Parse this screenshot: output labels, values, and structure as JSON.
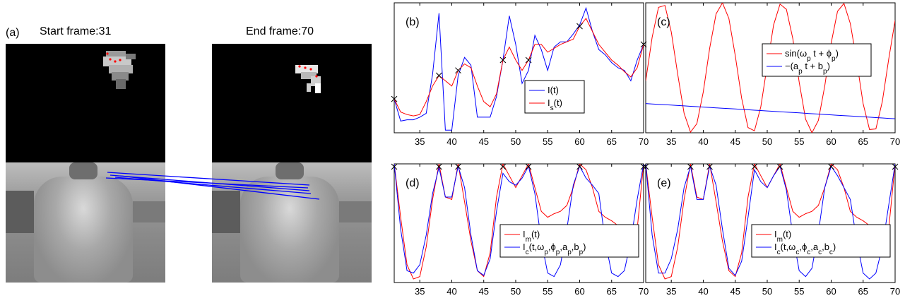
{
  "panel_a": {
    "label": "(a)",
    "start_title": "Start frame:31",
    "end_title": "End frame:70"
  },
  "chart_data": [
    {
      "panel": "(b)",
      "type": "line",
      "x": [
        31,
        32,
        33,
        34,
        35,
        36,
        37,
        38,
        39,
        40,
        41,
        42,
        43,
        44,
        45,
        46,
        47,
        48,
        49,
        50,
        51,
        52,
        53,
        54,
        55,
        56,
        57,
        58,
        59,
        60,
        61,
        62,
        63,
        64,
        65,
        66,
        67,
        68,
        69,
        70
      ],
      "xlim": [
        31,
        70
      ],
      "xticks": [
        35,
        40,
        45,
        50,
        55,
        60,
        65,
        70
      ],
      "ylim": [
        0,
        1
      ],
      "series": [
        {
          "name": "I(t)",
          "color": "#0000ff",
          "values": [
            0.26,
            0.09,
            0.1,
            0.1,
            0.12,
            0.15,
            0.45,
            0.92,
            0.02,
            0.02,
            0.44,
            0.58,
            0.52,
            0.12,
            0.12,
            0.12,
            0.28,
            0.56,
            0.9,
            0.68,
            0.38,
            0.48,
            0.75,
            0.64,
            0.48,
            0.66,
            0.7,
            0.7,
            0.76,
            0.83,
            0.96,
            0.78,
            0.64,
            0.6,
            0.54,
            0.5,
            0.48,
            0.4,
            0.56,
            0.68
          ]
        },
        {
          "name": "I_s(t)",
          "color": "#ff0000",
          "values": [
            0.26,
            0.16,
            0.14,
            0.13,
            0.14,
            0.24,
            0.36,
            0.44,
            0.4,
            0.36,
            0.48,
            0.53,
            0.5,
            0.36,
            0.24,
            0.2,
            0.3,
            0.56,
            0.66,
            0.56,
            0.48,
            0.56,
            0.68,
            0.68,
            0.62,
            0.65,
            0.68,
            0.7,
            0.72,
            0.82,
            0.88,
            0.78,
            0.68,
            0.62,
            0.56,
            0.52,
            0.47,
            0.43,
            0.5,
            0.68
          ]
        }
      ],
      "markers_x": [
        31,
        38,
        41,
        48,
        52,
        60,
        70
      ],
      "legend": "center-right"
    },
    {
      "panel": "(c)",
      "type": "line",
      "x": [
        31,
        32,
        33,
        34,
        35,
        36,
        37,
        38,
        39,
        40,
        41,
        42,
        43,
        44,
        45,
        46,
        47,
        48,
        49,
        50,
        51,
        52,
        53,
        54,
        55,
        56,
        57,
        58,
        59,
        60,
        61,
        62,
        63,
        64,
        65,
        66,
        67,
        68,
        69,
        70
      ],
      "xlim": [
        31,
        70
      ],
      "xticks": [
        35,
        40,
        45,
        50,
        55,
        60,
        65,
        70
      ],
      "ylim": [
        -1,
        1
      ],
      "series": [
        {
          "name": "sin(ω_p t + ϕ_p)",
          "color": "#ff0000",
          "values": [
            -0.2,
            0.47,
            0.93,
            0.96,
            0.55,
            -0.1,
            -0.7,
            -0.99,
            -0.86,
            -0.37,
            0.3,
            0.83,
            1.0,
            0.76,
            0.19,
            -0.47,
            -0.92,
            -0.97,
            -0.6,
            0.04,
            0.66,
            0.98,
            0.9,
            0.45,
            -0.22,
            -0.79,
            -1.0,
            -0.81,
            -0.28,
            0.38,
            0.87,
            0.99,
            0.68,
            0.1,
            -0.55,
            -0.95,
            -0.94,
            -0.52,
            0.13,
            0.73
          ]
        },
        {
          "name": "−(a_p t + b_p)",
          "color": "#0000ff",
          "values": [
            -0.55,
            -0.556,
            -0.562,
            -0.568,
            -0.574,
            -0.58,
            -0.586,
            -0.592,
            -0.598,
            -0.604,
            -0.61,
            -0.616,
            -0.622,
            -0.628,
            -0.634,
            -0.64,
            -0.646,
            -0.652,
            -0.658,
            -0.664,
            -0.67,
            -0.676,
            -0.682,
            -0.688,
            -0.694,
            -0.7,
            -0.706,
            -0.712,
            -0.718,
            -0.724,
            -0.73,
            -0.736,
            -0.742,
            -0.748,
            -0.754,
            -0.76,
            -0.766,
            -0.772,
            -0.778,
            -0.784
          ]
        }
      ],
      "legend": "upper-right"
    },
    {
      "panel": "(d)",
      "type": "line",
      "x": [
        31,
        32,
        33,
        34,
        35,
        36,
        37,
        38,
        39,
        40,
        41,
        42,
        43,
        44,
        45,
        46,
        47,
        48,
        49,
        50,
        51,
        52,
        53,
        54,
        55,
        56,
        57,
        58,
        59,
        60,
        61,
        62,
        63,
        64,
        65,
        66,
        67,
        68,
        69,
        70
      ],
      "xlim": [
        31,
        70
      ],
      "xticks": [
        35,
        40,
        45,
        50,
        55,
        60,
        65,
        70
      ],
      "ylim": [
        0,
        1
      ],
      "series": [
        {
          "name": "I_m(t)",
          "color": "#ff0000",
          "values": [
            1.0,
            0.55,
            0.15,
            0.03,
            0.05,
            0.3,
            0.7,
            1.0,
            0.72,
            0.7,
            1.0,
            0.68,
            0.35,
            0.1,
            0.05,
            0.25,
            0.72,
            1.0,
            0.9,
            0.8,
            0.9,
            1.0,
            0.8,
            0.6,
            0.55,
            0.58,
            0.6,
            0.65,
            0.8,
            1.0,
            0.95,
            0.8,
            0.6,
            0.55,
            0.52,
            0.48,
            0.44,
            0.4,
            0.45,
            1.0
          ]
        },
        {
          "name": "I_c(t,ω_p,ϕ_p,a_p,b_p)",
          "color": "#0000ff",
          "values": [
            1.0,
            0.45,
            0.1,
            0.08,
            0.15,
            0.4,
            0.75,
            0.97,
            0.72,
            0.72,
            0.98,
            0.8,
            0.4,
            0.1,
            0.06,
            0.2,
            0.6,
            0.92,
            0.85,
            0.82,
            0.88,
            0.98,
            0.75,
            0.35,
            0.08,
            0.05,
            0.15,
            0.45,
            0.82,
            0.98,
            0.88,
            0.82,
            0.75,
            0.35,
            0.08,
            0.05,
            0.1,
            0.35,
            0.7,
            1.0
          ]
        }
      ],
      "markers_x": [
        31,
        38,
        41,
        48,
        52,
        60,
        70
      ],
      "legend": "lower-right"
    },
    {
      "panel": "(e)",
      "type": "line",
      "x": [
        31,
        32,
        33,
        34,
        35,
        36,
        37,
        38,
        39,
        40,
        41,
        42,
        43,
        44,
        45,
        46,
        47,
        48,
        49,
        50,
        51,
        52,
        53,
        54,
        55,
        56,
        57,
        58,
        59,
        60,
        61,
        62,
        63,
        64,
        65,
        66,
        67,
        68,
        69,
        70
      ],
      "xlim": [
        31,
        70
      ],
      "xticks": [
        35,
        40,
        45,
        50,
        55,
        60,
        65,
        70
      ],
      "ylim": [
        0,
        1
      ],
      "series": [
        {
          "name": "I_m(t)",
          "color": "#ff0000",
          "values": [
            1.0,
            0.55,
            0.15,
            0.03,
            0.05,
            0.3,
            0.7,
            1.0,
            0.72,
            0.7,
            1.0,
            0.68,
            0.35,
            0.1,
            0.05,
            0.25,
            0.72,
            1.0,
            0.9,
            0.8,
            0.9,
            1.0,
            0.8,
            0.6,
            0.55,
            0.58,
            0.6,
            0.65,
            0.8,
            1.0,
            0.95,
            0.8,
            0.6,
            0.55,
            0.52,
            0.48,
            0.44,
            0.4,
            0.45,
            1.0
          ]
        },
        {
          "name": "I_c(t,ω_c,ϕ_c,a_c,b_c)",
          "color": "#0000ff",
          "values": [
            1.0,
            0.4,
            0.08,
            0.08,
            0.2,
            0.45,
            0.8,
            0.98,
            0.7,
            0.7,
            0.98,
            0.82,
            0.45,
            0.12,
            0.06,
            0.18,
            0.55,
            0.95,
            0.85,
            0.8,
            0.9,
            0.98,
            0.78,
            0.4,
            0.1,
            0.05,
            0.12,
            0.42,
            0.8,
            0.98,
            0.9,
            0.8,
            0.7,
            0.35,
            0.08,
            0.03,
            0.08,
            0.3,
            0.65,
            1.0
          ]
        }
      ],
      "markers_x": [
        31,
        38,
        41,
        48,
        52,
        60,
        70
      ],
      "legend": "lower-right"
    }
  ]
}
